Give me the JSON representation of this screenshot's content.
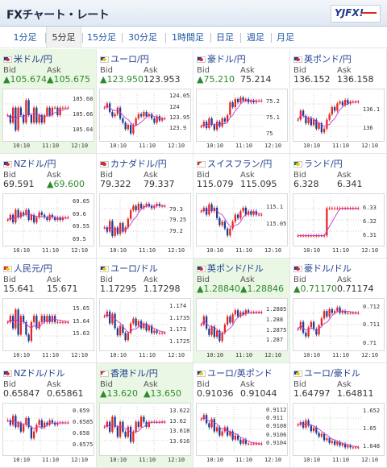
{
  "header": {
    "title": "FXチャート・レート",
    "logo_text": "YJFX!"
  },
  "tabs": [
    {
      "label": "1分足",
      "active": false
    },
    {
      "label": "5分足",
      "active": true
    },
    {
      "label": "15分足",
      "active": false
    },
    {
      "label": "30分足",
      "active": false
    },
    {
      "label": "1時間足",
      "active": false
    },
    {
      "label": "日足",
      "active": false
    },
    {
      "label": "週足",
      "active": false
    },
    {
      "label": "月足",
      "active": false
    }
  ],
  "labels": {
    "bid": "Bid",
    "ask": "Ask"
  },
  "colors": {
    "up": "#2e8a2e",
    "down": "#c0292b",
    "candle_up": "#e8251e",
    "candle_down": "#1d3f93",
    "ma": "#c23bd6",
    "highlight": "#eaf7e4"
  },
  "pairs": [
    {
      "name": "米ドル/円",
      "flag": "us",
      "bid": "▲105.674",
      "ask": "▲105.675",
      "trend": "up",
      "highlight": true,
      "chart_data": {
        "type": "candlestick",
        "x_ticks": [
          "10:10",
          "11:10",
          "12:10"
        ],
        "y_ticks": [
          "105.68",
          "105.66",
          "105.64"
        ],
        "close": [
          105.66,
          105.65,
          105.67,
          105.64,
          105.67,
          105.66,
          105.65,
          105.68,
          105.66,
          105.65,
          105.67,
          105.65,
          105.66,
          105.65,
          105.66,
          105.67,
          105.66,
          105.67,
          105.67,
          105.66,
          105.67,
          105.67,
          105.67,
          105.67
        ],
        "ylim": [
          105.63,
          105.69
        ]
      }
    },
    {
      "name": "ユーロ/円",
      "flag": "eu",
      "bid": "▲123.950",
      "ask": "123.953",
      "trend": "up",
      "highlight": false,
      "chart_data": {
        "type": "candlestick",
        "x_ticks": [
          "10:10",
          "11:10",
          "12:10"
        ],
        "y_ticks": [
          "124.05",
          "124",
          "123.95",
          "123.9"
        ],
        "close": [
          124.0,
          124.02,
          123.98,
          123.96,
          123.97,
          124.0,
          123.95,
          123.93,
          123.9,
          123.92,
          123.88,
          123.92,
          123.95,
          123.97,
          123.96,
          123.98,
          123.96,
          123.97,
          123.95,
          123.93,
          123.96,
          123.94,
          123.95,
          123.95
        ],
        "ylim": [
          123.86,
          124.07
        ]
      }
    },
    {
      "name": "豪ドル/円",
      "flag": "au",
      "bid": "▲75.210",
      "ask": "75.214",
      "trend": "up",
      "highlight": false,
      "chart_data": {
        "type": "candlestick",
        "x_ticks": [
          "10:10",
          "11:10",
          "12:10"
        ],
        "y_ticks": [
          "75.2",
          "75.1",
          "75"
        ],
        "close": [
          75.05,
          75.08,
          75.04,
          75.1,
          75.06,
          75.03,
          75.08,
          75.05,
          75.1,
          75.08,
          75.12,
          75.2,
          75.17,
          75.22,
          75.2,
          75.23,
          75.21,
          75.22,
          75.2,
          75.21,
          75.2,
          75.21,
          75.21,
          75.21
        ],
        "ylim": [
          74.98,
          75.26
        ]
      }
    },
    {
      "name": "英ポンド/円",
      "flag": "gb",
      "bid": "136.152",
      "ask": "136.158",
      "trend": "none",
      "highlight": false,
      "chart_data": {
        "type": "candlestick",
        "x_ticks": [
          "10:10",
          "11:10",
          "12:10"
        ],
        "y_ticks": [
          "136.1",
          "136"
        ],
        "close": [
          136.05,
          136.1,
          136.07,
          136.03,
          136.06,
          136.02,
          136.05,
          136.0,
          136.03,
          135.98,
          136.0,
          136.05,
          136.08,
          136.12,
          136.1,
          136.14,
          136.15,
          136.13,
          136.16,
          136.14,
          136.15,
          136.15,
          136.15,
          136.15
        ],
        "ylim": [
          135.95,
          136.2
        ]
      }
    },
    {
      "name": "NZドル/円",
      "flag": "nz",
      "bid": "69.591",
      "ask": "▲69.600",
      "trend": "none",
      "highlight": false,
      "chart_data": {
        "type": "candlestick",
        "x_ticks": [
          "10:10",
          "11:10",
          "12:10"
        ],
        "y_ticks": [
          "69.65",
          "69.6",
          "69.55",
          "69.5"
        ],
        "close": [
          69.58,
          69.6,
          69.57,
          69.62,
          69.59,
          69.61,
          69.6,
          69.62,
          69.58,
          69.6,
          69.57,
          69.59,
          69.61,
          69.6,
          69.59,
          69.58,
          69.6,
          69.59,
          69.58,
          69.59,
          69.58,
          69.59,
          69.59,
          69.59
        ],
        "ylim": [
          69.49,
          69.67
        ]
      }
    },
    {
      "name": "カナダドル/円",
      "flag": "ca",
      "bid": "79.322",
      "ask": "79.337",
      "trend": "none",
      "highlight": false,
      "chart_data": {
        "type": "candlestick",
        "x_ticks": [
          "10:10",
          "11:10",
          "12:10"
        ],
        "y_ticks": [
          "79.3",
          "79.25",
          "79.2"
        ],
        "close": [
          79.22,
          79.2,
          79.25,
          79.18,
          79.22,
          79.19,
          79.24,
          79.2,
          79.22,
          79.26,
          79.3,
          79.32,
          79.3,
          79.33,
          79.31,
          79.32,
          79.33,
          79.32,
          79.31,
          79.32,
          79.33,
          79.32,
          79.32,
          79.32
        ],
        "ylim": [
          79.15,
          79.36
        ]
      }
    },
    {
      "name": "スイスフラン/円",
      "flag": "ch",
      "bid": "115.079",
      "ask": "115.095",
      "trend": "none",
      "highlight": false,
      "chart_data": {
        "type": "candlestick",
        "x_ticks": [
          "10:10",
          "11:10",
          "12:10"
        ],
        "y_ticks": [
          "115.1",
          "115.05"
        ],
        "close": [
          115.09,
          115.1,
          115.08,
          115.11,
          115.09,
          115.1,
          115.07,
          115.05,
          115.06,
          115.04,
          115.02,
          115.04,
          115.06,
          115.08,
          115.07,
          115.09,
          115.1,
          115.08,
          115.09,
          115.08,
          115.09,
          115.08,
          115.08,
          115.08
        ],
        "ylim": [
          115.0,
          115.13
        ]
      }
    },
    {
      "name": "ランド/円",
      "flag": "za",
      "bid": "6.328",
      "ask": "6.341",
      "trend": "none",
      "highlight": false,
      "chart_data": {
        "type": "candlestick",
        "x_ticks": [
          "10:10",
          "11:10",
          "12:10"
        ],
        "y_ticks": [
          "6.33",
          "6.32",
          "6.31"
        ],
        "close": [
          6.31,
          6.31,
          6.31,
          6.31,
          6.31,
          6.31,
          6.31,
          6.31,
          6.31,
          6.31,
          6.31,
          6.33,
          6.33,
          6.33,
          6.33,
          6.33,
          6.33,
          6.33,
          6.33,
          6.33,
          6.33,
          6.33,
          6.33,
          6.33
        ],
        "ylim": [
          6.305,
          6.338
        ]
      }
    },
    {
      "name": "人民元/円",
      "flag": "cn",
      "bid": "15.641",
      "ask": "15.671",
      "trend": "none",
      "highlight": false,
      "chart_data": {
        "type": "candlestick",
        "x_ticks": [
          "10:10",
          "11:10",
          "12:10"
        ],
        "y_ticks": [
          "15.65",
          "15.64",
          "15.63"
        ],
        "close": [
          15.64,
          15.645,
          15.635,
          15.65,
          15.63,
          15.645,
          15.64,
          15.63,
          15.625,
          15.64,
          15.645,
          15.635,
          15.64,
          15.645,
          15.64,
          15.645,
          15.64,
          15.645,
          15.64,
          15.64,
          15.64,
          15.64,
          15.64,
          15.64
        ],
        "ylim": [
          15.62,
          15.656
        ]
      }
    },
    {
      "name": "ユーロ/ドル",
      "flag": "eu",
      "bid": "1.17295",
      "ask": "1.17298",
      "trend": "none",
      "highlight": false,
      "chart_data": {
        "type": "candlestick",
        "x_ticks": [
          "10:10",
          "11:10",
          "12:10"
        ],
        "y_ticks": [
          "1.174",
          "1.1735",
          "1.173",
          "1.1725"
        ],
        "close": [
          1.1736,
          1.1738,
          1.1733,
          1.1737,
          1.1731,
          1.1728,
          1.1732,
          1.1729,
          1.1726,
          1.1729,
          1.1733,
          1.1735,
          1.1732,
          1.1734,
          1.1731,
          1.1733,
          1.173,
          1.1732,
          1.1729,
          1.173,
          1.1729,
          1.1729,
          1.1729,
          1.1729
        ],
        "ylim": [
          1.1723,
          1.1742
        ]
      }
    },
    {
      "name": "英ポンド/ドル",
      "flag": "gb",
      "bid": "▲1.28840",
      "ask": "▲1.28846",
      "trend": "up",
      "highlight": true,
      "chart_data": {
        "type": "candlestick",
        "x_ticks": [
          "10:10",
          "11:10",
          "12:10"
        ],
        "y_ticks": [
          "1.2885",
          "1.288",
          "1.2875",
          "1.287"
        ],
        "close": [
          1.2878,
          1.2882,
          1.2876,
          1.2873,
          1.2877,
          1.2872,
          1.2875,
          1.287,
          1.2874,
          1.2878,
          1.2882,
          1.2879,
          1.2883,
          1.2885,
          1.2882,
          1.2884,
          1.2883,
          1.2885,
          1.2884,
          1.2884,
          1.2884,
          1.2884,
          1.2884,
          1.2884
        ],
        "ylim": [
          1.2867,
          1.2889
        ]
      }
    },
    {
      "name": "豪ドル/ドル",
      "flag": "au",
      "bid": "▲0.71170",
      "ask": "0.71174",
      "trend": "up",
      "highlight": false,
      "chart_data": {
        "type": "candlestick",
        "x_ticks": [
          "10:10",
          "11:10",
          "12:10"
        ],
        "y_ticks": [
          "0.712",
          "0.711",
          "0.71"
        ],
        "close": [
          0.7108,
          0.7112,
          0.7106,
          0.7104,
          0.7109,
          0.7112,
          0.7108,
          0.7105,
          0.711,
          0.7114,
          0.7118,
          0.7115,
          0.7119,
          0.7117,
          0.7118,
          0.712,
          0.7117,
          0.7118,
          0.7117,
          0.7117,
          0.7117,
          0.7117,
          0.7117,
          0.7117
        ],
        "ylim": [
          0.7098,
          0.7123
        ]
      }
    },
    {
      "name": "NZドル/ドル",
      "flag": "nz",
      "bid": "0.65847",
      "ask": "0.65861",
      "trend": "none",
      "highlight": false,
      "chart_data": {
        "type": "candlestick",
        "x_ticks": [
          "10:10",
          "11:10",
          "12:10"
        ],
        "y_ticks": [
          "0.659",
          "0.6585",
          "0.658",
          "0.6575"
        ],
        "close": [
          0.6586,
          0.6584,
          0.6588,
          0.6583,
          0.6585,
          0.6581,
          0.6584,
          0.6587,
          0.6583,
          0.6578,
          0.6581,
          0.6584,
          0.6586,
          0.6583,
          0.6585,
          0.6584,
          0.6586,
          0.6585,
          0.6584,
          0.6585,
          0.6585,
          0.6585,
          0.6585,
          0.6585
        ],
        "ylim": [
          0.6572,
          0.6592
        ]
      }
    },
    {
      "name": "香港ドル/円",
      "flag": "hk",
      "bid": "▲13.620",
      "ask": "▲13.650",
      "trend": "up",
      "highlight": true,
      "chart_data": {
        "type": "candlestick",
        "x_ticks": [
          "10:10",
          "11:10",
          "12:10"
        ],
        "y_ticks": [
          "13.622",
          "13.62",
          "13.618",
          "13.616"
        ],
        "close": [
          13.619,
          13.62,
          13.618,
          13.621,
          13.619,
          13.617,
          13.62,
          13.618,
          13.617,
          13.619,
          13.616,
          13.618,
          13.62,
          13.619,
          13.621,
          13.62,
          13.619,
          13.62,
          13.62,
          13.62,
          13.62,
          13.62,
          13.62,
          13.62
        ],
        "ylim": [
          13.614,
          13.623
        ]
      }
    },
    {
      "name": "ユーロ/英ポンド",
      "flag": "eu",
      "bid": "0.91036",
      "ask": "0.91044",
      "trend": "none",
      "highlight": false,
      "chart_data": {
        "type": "candlestick",
        "x_ticks": [
          "10:10",
          "11:10",
          "12:10"
        ],
        "y_ticks": [
          "0.9112",
          "0.911",
          "0.9108",
          "0.9106",
          "0.9104"
        ],
        "close": [
          0.911,
          0.9111,
          0.9109,
          0.9108,
          0.911,
          0.9107,
          0.9108,
          0.9106,
          0.9107,
          0.9108,
          0.9106,
          0.9107,
          0.9105,
          0.9106,
          0.9105,
          0.9104,
          0.9105,
          0.9104,
          0.9104,
          0.9104,
          0.9104,
          0.9104,
          0.9104,
          0.9104
        ],
        "ylim": [
          0.9102,
          0.9113
        ]
      }
    },
    {
      "name": "ユーロ/豪ドル",
      "flag": "eu",
      "bid": "1.64797",
      "ask": "1.64811",
      "trend": "none",
      "highlight": false,
      "chart_data": {
        "type": "candlestick",
        "x_ticks": [
          "10:10",
          "11:10",
          "12:10"
        ],
        "y_ticks": [
          "1.652",
          "1.65",
          "1.648"
        ],
        "close": [
          1.6505,
          1.6508,
          1.6502,
          1.651,
          1.6504,
          1.6498,
          1.6502,
          1.6496,
          1.6492,
          1.6495,
          1.6488,
          1.649,
          1.6485,
          1.6487,
          1.6483,
          1.6486,
          1.6482,
          1.6484,
          1.648,
          1.6482,
          1.648,
          1.648,
          1.648,
          1.648
        ],
        "ylim": [
          1.6475,
          1.6525
        ]
      }
    }
  ]
}
